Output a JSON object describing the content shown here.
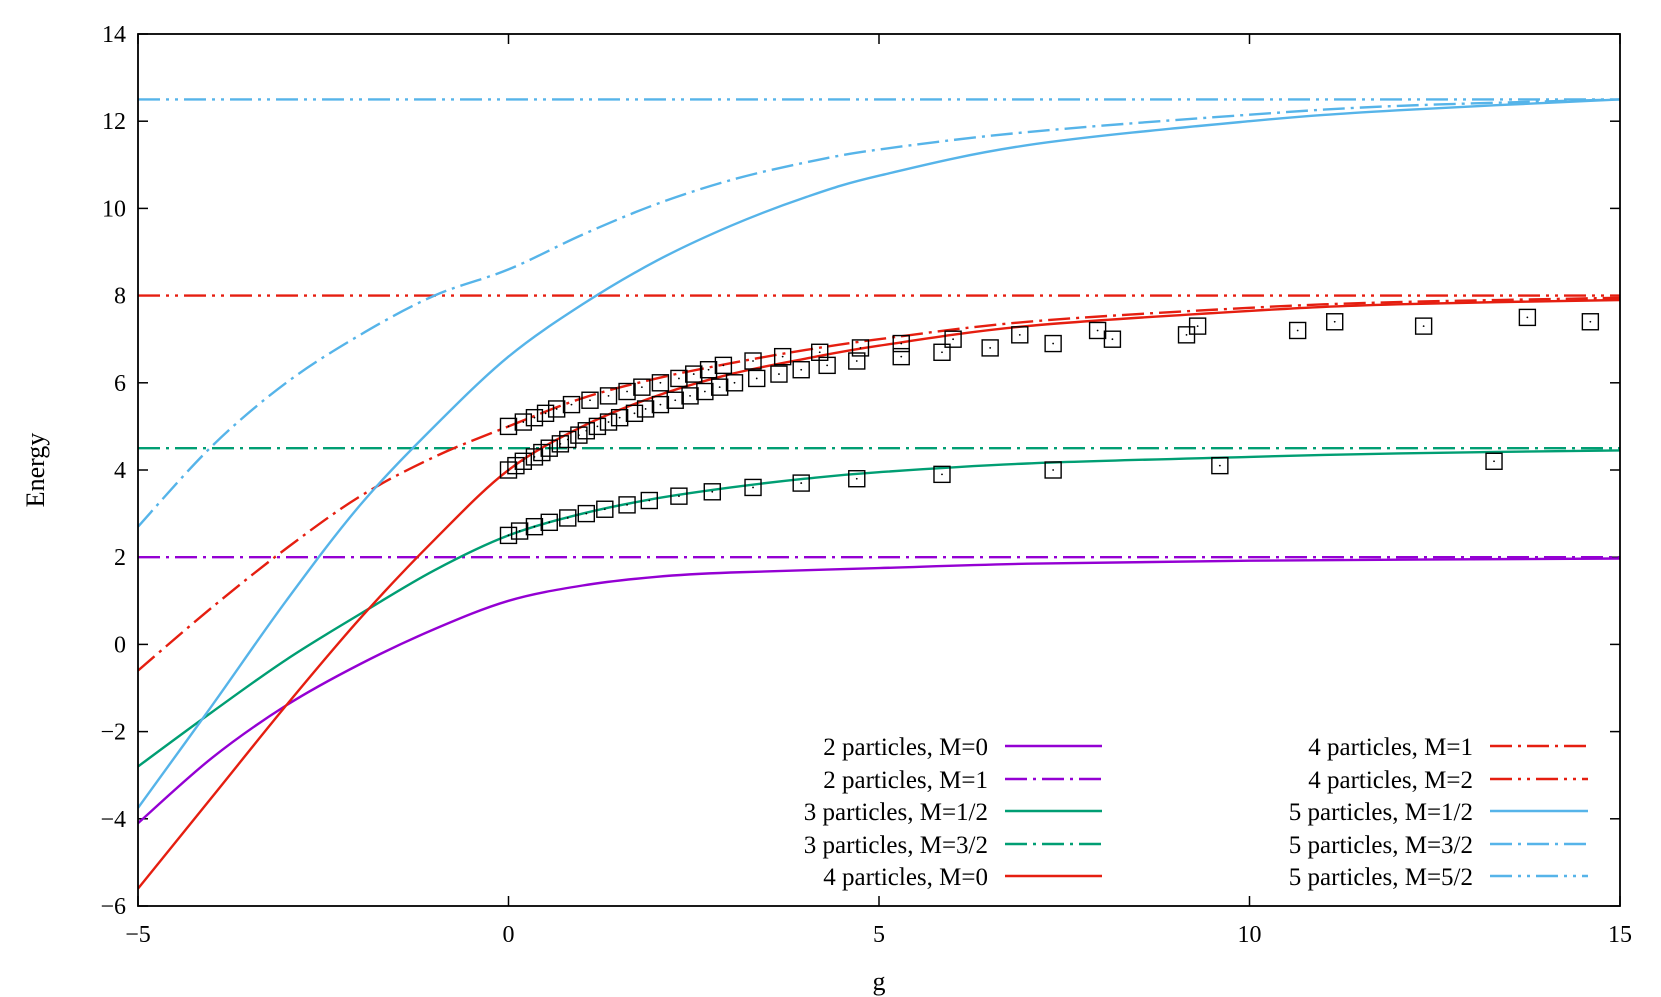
{
  "chart_data": {
    "type": "line",
    "title": "",
    "xlabel": "g",
    "ylabel": "Energy",
    "xlim": [
      -5,
      15
    ],
    "ylim": [
      -6,
      14
    ],
    "xticks": [
      -5,
      0,
      5,
      10,
      15
    ],
    "xtick_labels": [
      "−5",
      "0",
      "5",
      "10",
      "15"
    ],
    "yticks": [
      -6,
      -4,
      -2,
      0,
      2,
      4,
      6,
      8,
      10,
      12,
      14
    ],
    "ytick_labels": [
      "−6",
      "−4",
      "−2",
      "0",
      "2",
      "4",
      "6",
      "8",
      "10",
      "12",
      "14"
    ],
    "grid": false,
    "legend_position": "bottom-right",
    "series": [
      {
        "name": "2 particles, M=0",
        "color": "#9400d3",
        "dash": "solid",
        "x": [
          -5,
          -4,
          -3,
          -2,
          -1,
          0,
          1,
          2,
          3,
          5,
          7,
          10,
          15
        ],
        "y": [
          -4.1,
          -2.6,
          -1.4,
          -0.45,
          0.35,
          1.0,
          1.35,
          1.55,
          1.65,
          1.75,
          1.85,
          1.92,
          1.97
        ]
      },
      {
        "name": "2 particles, M=1",
        "color": "#9400d3",
        "dash": "dash-dot",
        "x": [
          -5,
          15
        ],
        "y": [
          2,
          2
        ]
      },
      {
        "name": "3 particles, M=1/2",
        "color": "#009e73",
        "dash": "solid",
        "x": [
          -5,
          -4,
          -3,
          -2,
          -1,
          0,
          1,
          2,
          3,
          4,
          5,
          7,
          10,
          12,
          15
        ],
        "y": [
          -2.8,
          -1.55,
          -0.35,
          0.7,
          1.7,
          2.5,
          3.0,
          3.35,
          3.6,
          3.8,
          3.95,
          4.15,
          4.3,
          4.38,
          4.45
        ]
      },
      {
        "name": "3 particles, M=3/2",
        "color": "#009e73",
        "dash": "dash-dot",
        "x": [
          -5,
          15
        ],
        "y": [
          4.5,
          4.5
        ]
      },
      {
        "name": "4 particles, M=0",
        "color": "#e51e10",
        "dash": "solid",
        "x": [
          -5,
          -4,
          -3,
          -2,
          -1,
          0,
          1,
          2,
          3,
          4,
          5,
          7,
          10,
          12,
          15
        ],
        "y": [
          -5.6,
          -3.5,
          -1.4,
          0.6,
          2.4,
          4.0,
          5.0,
          5.7,
          6.2,
          6.55,
          6.85,
          7.3,
          7.65,
          7.8,
          7.9
        ]
      },
      {
        "name": "4 particles, M=1",
        "color": "#e51e10",
        "dash": "dash-dot",
        "x": [
          -5,
          -4,
          -3,
          -2,
          -1,
          0,
          1,
          2,
          3,
          4,
          5,
          7,
          10,
          12,
          15
        ],
        "y": [
          -0.6,
          0.85,
          2.2,
          3.4,
          4.3,
          5.0,
          5.65,
          6.1,
          6.45,
          6.75,
          7.0,
          7.4,
          7.72,
          7.85,
          7.95
        ]
      },
      {
        "name": "4 particles, M=2",
        "color": "#e51e10",
        "dash": "dash-dot-dot",
        "x": [
          -5,
          15
        ],
        "y": [
          8,
          8
        ]
      },
      {
        "name": "5 particles, M=1/2",
        "color": "#56b4e9",
        "dash": "solid",
        "x": [
          -5,
          -4,
          -3,
          -2,
          -1,
          0,
          1,
          2,
          3,
          4,
          5,
          7,
          10,
          12,
          15
        ],
        "y": [
          -3.75,
          -1.4,
          1.0,
          3.2,
          5.0,
          6.6,
          7.8,
          8.8,
          9.6,
          10.25,
          10.75,
          11.45,
          12.0,
          12.25,
          12.5
        ]
      },
      {
        "name": "5 particles, M=3/2",
        "color": "#56b4e9",
        "dash": "dash-dot",
        "x": [
          -5,
          -4,
          -3,
          -2,
          -1,
          0,
          1,
          2,
          3,
          4,
          5,
          7,
          10,
          12,
          15
        ],
        "y": [
          2.7,
          4.55,
          6.0,
          7.1,
          8.0,
          8.6,
          9.4,
          10.1,
          10.65,
          11.05,
          11.35,
          11.75,
          12.15,
          12.35,
          12.5
        ]
      },
      {
        "name": "5 particles, M=5/2",
        "color": "#56b4e9",
        "dash": "dash-dot-dot",
        "x": [
          -5,
          15
        ],
        "y": [
          12.5,
          12.5
        ]
      }
    ],
    "markers": {
      "symbol": "square",
      "color": "#000000",
      "points": [
        [
          0,
          2.5
        ],
        [
          0.15,
          2.6
        ],
        [
          0.35,
          2.7
        ],
        [
          0.55,
          2.8
        ],
        [
          0.8,
          2.9
        ],
        [
          1.05,
          3.0
        ],
        [
          1.3,
          3.1
        ],
        [
          1.6,
          3.2
        ],
        [
          1.9,
          3.3
        ],
        [
          2.3,
          3.4
        ],
        [
          2.75,
          3.5
        ],
        [
          3.3,
          3.6
        ],
        [
          3.95,
          3.7
        ],
        [
          4.7,
          3.8
        ],
        [
          5.85,
          3.9
        ],
        [
          7.35,
          4.0
        ],
        [
          9.6,
          4.1
        ],
        [
          13.3,
          4.2
        ],
        [
          0,
          4.0
        ],
        [
          0.1,
          4.1
        ],
        [
          0.2,
          4.2
        ],
        [
          0.35,
          4.3
        ],
        [
          0.45,
          4.4
        ],
        [
          0.55,
          4.5
        ],
        [
          0.7,
          4.6
        ],
        [
          0.8,
          4.7
        ],
        [
          0.95,
          4.8
        ],
        [
          1.05,
          4.9
        ],
        [
          1.2,
          5.0
        ],
        [
          1.35,
          5.1
        ],
        [
          1.5,
          5.2
        ],
        [
          1.7,
          5.3
        ],
        [
          1.85,
          5.4
        ],
        [
          2.05,
          5.5
        ],
        [
          2.25,
          5.6
        ],
        [
          2.45,
          5.7
        ],
        [
          2.65,
          5.8
        ],
        [
          2.85,
          5.9
        ],
        [
          3.05,
          6.0
        ],
        [
          3.35,
          6.1
        ],
        [
          3.65,
          6.2
        ],
        [
          3.95,
          6.3
        ],
        [
          4.3,
          6.4
        ],
        [
          4.7,
          6.5
        ],
        [
          5.3,
          6.6
        ],
        [
          5.85,
          6.7
        ],
        [
          6.5,
          6.8
        ],
        [
          7.35,
          6.9
        ],
        [
          8.15,
          7.0
        ],
        [
          9.15,
          7.1
        ],
        [
          10.65,
          7.2
        ],
        [
          12.35,
          7.3
        ],
        [
          14.6,
          7.4
        ],
        [
          0,
          5.0
        ],
        [
          0.2,
          5.1
        ],
        [
          0.35,
          5.2
        ],
        [
          0.5,
          5.3
        ],
        [
          0.65,
          5.4
        ],
        [
          0.85,
          5.5
        ],
        [
          1.1,
          5.6
        ],
        [
          1.35,
          5.7
        ],
        [
          1.6,
          5.8
        ],
        [
          1.8,
          5.9
        ],
        [
          2.05,
          6.0
        ],
        [
          2.3,
          6.1
        ],
        [
          2.5,
          6.2
        ],
        [
          2.7,
          6.3
        ],
        [
          2.9,
          6.4
        ],
        [
          3.3,
          6.5
        ],
        [
          3.7,
          6.6
        ],
        [
          4.2,
          6.7
        ],
        [
          4.75,
          6.8
        ],
        [
          5.3,
          6.9
        ],
        [
          6.0,
          7.0
        ],
        [
          6.9,
          7.1
        ],
        [
          7.95,
          7.2
        ],
        [
          9.3,
          7.3
        ],
        [
          11.15,
          7.4
        ],
        [
          13.75,
          7.5
        ]
      ]
    }
  }
}
